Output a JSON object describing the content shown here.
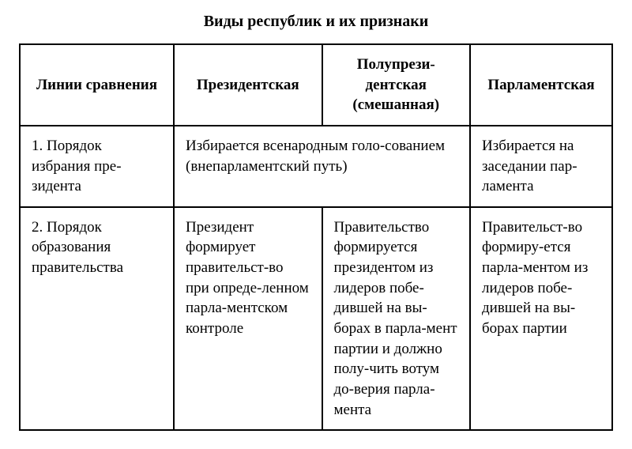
{
  "title": "Виды республик и их признаки",
  "table": {
    "headers": [
      "Линии сравнения",
      "Президентская",
      "Полупрези-дентская (смешанная)",
      "Парламентская"
    ],
    "rows": [
      {
        "label": "1. Порядок избрания пре-зидента",
        "cells": [
          {
            "text": "Избирается всенародным голо-сованием (внепарламентский путь)",
            "colspan": 2
          },
          {
            "text": "Избирается на заседании пар-ламента",
            "colspan": 1
          }
        ]
      },
      {
        "label": "2. Порядок образования правительства",
        "cells": [
          {
            "text": "Президент формирует правительст-во при опреде-ленном парла-ментском контроле",
            "colspan": 1
          },
          {
            "text": "Правительство формируется президентом из лидеров побе-дившей на вы-борах в парла-мент партии и должно полу-чить вотум до-верия парла-мента",
            "colspan": 1
          },
          {
            "text": "Правительст-во формиру-ется парла-ментом из лидеров побе-дившей на вы-борах партии",
            "colspan": 1
          }
        ]
      }
    ],
    "col_widths": [
      "26%",
      "25%",
      "25%",
      "24%"
    ],
    "border_color": "#000000",
    "background_color": "#ffffff",
    "title_fontsize": 20,
    "cell_fontsize": 19
  }
}
